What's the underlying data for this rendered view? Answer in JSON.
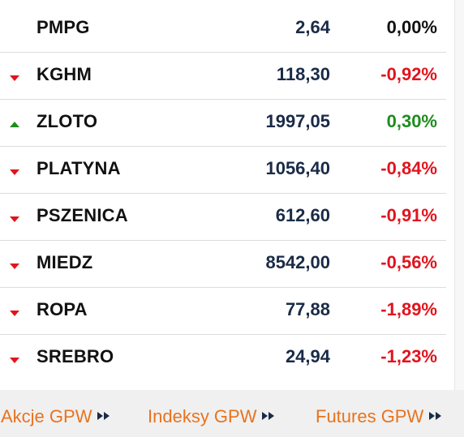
{
  "rows": [
    {
      "name": "PMPG",
      "price": "2,64",
      "change": "0,00%",
      "direction": "none",
      "color": "#111111"
    },
    {
      "name": "KGHM",
      "price": "118,30",
      "change": "-0,92%",
      "direction": "down",
      "color": "#e0141e"
    },
    {
      "name": "ZLOTO",
      "price": "1997,05",
      "change": "0,30%",
      "direction": "up",
      "color": "#1e8c1e"
    },
    {
      "name": "PLATYNA",
      "price": "1056,40",
      "change": "-0,84%",
      "direction": "down",
      "color": "#e0141e"
    },
    {
      "name": "PSZENICA",
      "price": "612,60",
      "change": "-0,91%",
      "direction": "down",
      "color": "#e0141e"
    },
    {
      "name": "MIEDZ",
      "price": "8542,00",
      "change": "-0,56%",
      "direction": "down",
      "color": "#e0141e"
    },
    {
      "name": "ROPA",
      "price": "77,88",
      "change": "-1,89%",
      "direction": "down",
      "color": "#e0141e"
    },
    {
      "name": "SREBRO",
      "price": "24,94",
      "change": "-1,23%",
      "direction": "down",
      "color": "#e0141e"
    }
  ],
  "footer": {
    "links": [
      {
        "label": "Akcje GPW",
        "icon": "fast-forward-icon"
      },
      {
        "label": "Indeksy GPW",
        "icon": "fast-forward-icon"
      },
      {
        "label": "Futures GPW",
        "icon": "fast-forward-icon"
      }
    ]
  },
  "colors": {
    "down": "#e0141e",
    "up": "#1e8c1e",
    "link": "#e8731e",
    "price": "#1a2b47"
  }
}
